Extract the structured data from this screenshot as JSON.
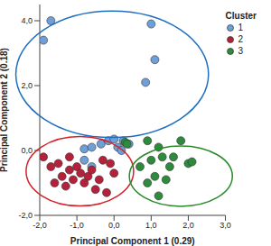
{
  "chart_data": {
    "type": "scatter",
    "xlabel": "Principal Component 1 (0.29)",
    "ylabel": "Principal Component 2 (0.18)",
    "xlim": [
      -2,
      3
    ],
    "ylim": [
      -2,
      4.5
    ],
    "xticks": [
      {
        "value": -2,
        "label": "-2,0"
      },
      {
        "value": -1,
        "label": "-1,0"
      },
      {
        "value": 0,
        "label": "0,0"
      },
      {
        "value": 1,
        "label": "1,0"
      },
      {
        "value": 2,
        "label": "2,0"
      },
      {
        "value": 3,
        "label": "3,0"
      }
    ],
    "yticks": [
      {
        "value": -2,
        "label": "-2,0"
      },
      {
        "value": 0,
        "label": "0,0"
      },
      {
        "value": 2,
        "label": "2,0"
      },
      {
        "value": 4,
        "label": "4,0"
      }
    ],
    "grid": false,
    "legend": "upper right",
    "legend_title": "Cluster",
    "series": [
      {
        "name": "1",
        "color": "#6f9fd8",
        "marker": "circle",
        "x": [
          -1.7,
          -1.9,
          1.0,
          0.85,
          1.1,
          -0.35,
          -0.15,
          0.0,
          0.1,
          0.25,
          0.4,
          -0.8,
          -0.6,
          -0.8,
          -0.6,
          0.2
        ],
        "values": [
          4.0,
          3.4,
          3.9,
          2.1,
          2.8,
          0.2,
          0.3,
          0.35,
          0.1,
          0.3,
          0.2,
          0.05,
          0.1,
          -0.3,
          -0.5,
          0.0
        ],
        "ellipse": {
          "cx": -0.05,
          "cy": 2.35,
          "rx": 2.15,
          "ry": 1.95,
          "color": "#1f6fc0"
        }
      },
      {
        "name": "2",
        "color": "#b5213a",
        "marker": "circle",
        "x": [
          -1.9,
          -1.7,
          -1.5,
          -1.4,
          -1.2,
          -1.1,
          -1.0,
          -0.9,
          -0.8,
          -0.7,
          -0.6,
          -0.5,
          -0.4,
          -0.3,
          -0.2,
          -1.3,
          -1.6,
          0.0,
          -0.1,
          -1.2
        ],
        "values": [
          -0.2,
          -0.5,
          -0.4,
          -0.8,
          -0.6,
          -0.9,
          -0.5,
          -0.7,
          -1.0,
          -0.8,
          -0.6,
          -1.2,
          -0.9,
          -0.3,
          -1.3,
          -1.1,
          -1.0,
          -0.7,
          -0.4,
          -0.2
        ],
        "ellipse": {
          "cx": -0.92,
          "cy": -0.64,
          "rx": 1.2,
          "ry": 1.07,
          "color": "#d62027"
        }
      },
      {
        "name": "3",
        "color": "#2e8b3e",
        "marker": "circle",
        "x": [
          0.9,
          1.2,
          1.0,
          1.3,
          1.5,
          1.6,
          1.4,
          0.9,
          1.1,
          2.0,
          2.1,
          1.2,
          0.7,
          0.3,
          0.35,
          1.8
        ],
        "values": [
          0.3,
          0.1,
          -0.3,
          -0.2,
          -0.5,
          -0.2,
          -0.9,
          -1.0,
          -0.8,
          -0.4,
          -0.35,
          -1.4,
          -0.5,
          0.25,
          0.2,
          0.3
        ],
        "ellipse": {
          "cx": 1.8,
          "cy": -0.79,
          "rx": 1.15,
          "ry": 0.93,
          "color": "#2a8a2a"
        }
      }
    ]
  }
}
